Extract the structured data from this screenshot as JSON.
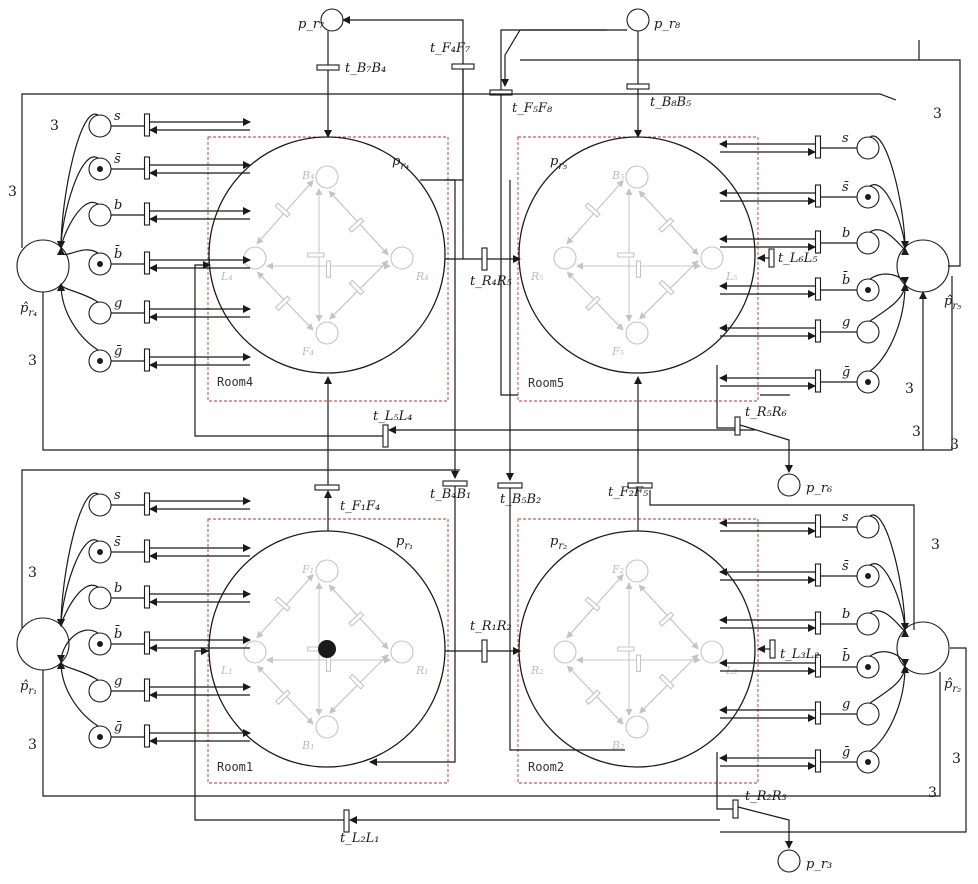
{
  "rooms": {
    "r1": {
      "room_label": "Room1",
      "place": "p",
      "place_sub": "r₁",
      "hat": "p̂",
      "hat_sub": "r₁",
      "F": "F₁",
      "L": "L₁",
      "R": "R₁",
      "B": "B₁"
    },
    "r2": {
      "room_label": "Room2",
      "place": "p",
      "place_sub": "r₂",
      "hat": "p̂",
      "hat_sub": "r₂",
      "F": "F₂",
      "L": "L₂",
      "R": "R₂",
      "B": "B₂"
    },
    "r4": {
      "room_label": "Room4",
      "place": "p",
      "place_sub": "r₄",
      "hat": "p̂",
      "hat_sub": "r₄",
      "F": "F₄",
      "L": "L₄",
      "R": "R₄",
      "B": "B₄"
    },
    "r5": {
      "room_label": "Room5",
      "place": "p",
      "place_sub": "r₅",
      "hat": "p̂",
      "hat_sub": "r₅",
      "F": "F₅",
      "L": "L₅",
      "R": "R₅",
      "B": "B₅"
    }
  },
  "external_places": {
    "pr7": "p_r₇",
    "pr8": "p_r₈",
    "pr6": "p_r₆",
    "pr3": "p_r₃"
  },
  "transitions": {
    "t_B7B4": "t_B₇B₄",
    "t_F4F7": "t_F₄F₇",
    "t_F5F8": "t_F₅F₈",
    "t_B8B5": "t_B₈B₅",
    "t_R4R5": "t_R₄R₅",
    "t_L5L4": "t_L₅L₄",
    "t_R5R6": "t_R₅R₆",
    "t_F1F4": "t_F₁F₄",
    "t_B4B1": "t_B₄B₁",
    "t_B5B2": "t_B₅B₂",
    "t_F2F5": "t_F₂F₅",
    "t_R1R2": "t_R₁R₂",
    "t_L2L1": "t_L₂L₁",
    "t_R2R3": "t_R₂R₃",
    "t_L6L5": "t_L₆L₅",
    "t_L3L2": "t_L₃L₂"
  },
  "weights": {
    "w": "3"
  },
  "sensor_places": {
    "s": "s",
    "s_bar": "s̄",
    "b": "b",
    "b_bar": "b̄",
    "g": "g",
    "g_bar": "ḡ"
  }
}
